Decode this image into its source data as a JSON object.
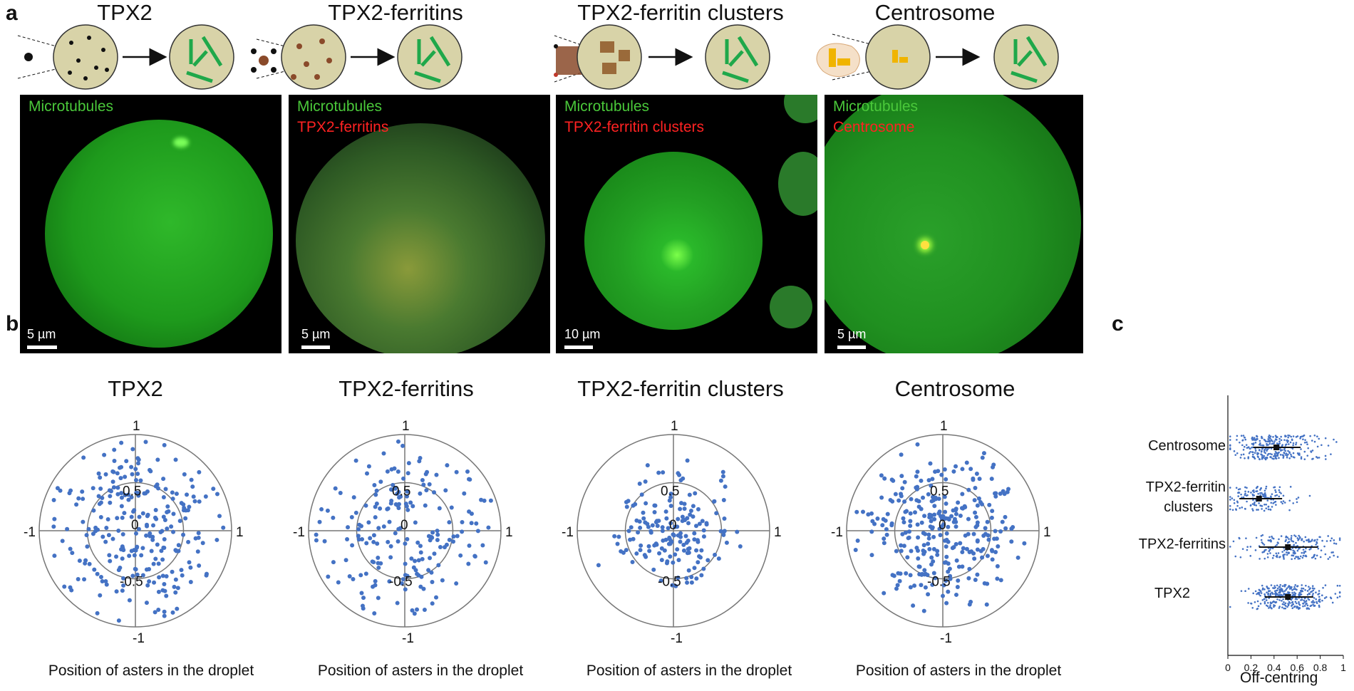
{
  "panel_labels": {
    "a": "a",
    "b": "b",
    "c": "c"
  },
  "panel_a": {
    "columns": [
      {
        "title": "TPX2",
        "label1": "Microtubules",
        "label2": "",
        "scale": "5 µm"
      },
      {
        "title": "TPX2-ferritins",
        "label1": "Microtubules",
        "label2": "TPX2-ferritins",
        "scale": "5 µm"
      },
      {
        "title": "TPX2-ferritin clusters",
        "label1": "Microtubules",
        "label2": "TPX2-ferritin clusters",
        "scale": "10 µm"
      },
      {
        "title": "Centrosome",
        "label1": "Microtubules",
        "label2": "Centrosome",
        "scale": "5 µm"
      }
    ]
  },
  "colors": {
    "droplet": "#d8d3a8",
    "tube": "#1fa84a",
    "dots": "#4472c4",
    "green": "#4ac83a",
    "red": "#ff2222"
  },
  "panel_b": {
    "titles": [
      "TPX2",
      "TPX2-ferritins",
      "TPX2-ferritin clusters",
      "Centrosome"
    ],
    "xlabel": "Position of asters in the droplet",
    "tick_1": "1",
    "tick_m1": "-1",
    "tick_05": "0.5",
    "tick_m05": "-0.5",
    "tick_0": "0"
  },
  "chart_data": {
    "type": "scatter",
    "x_axis_label": "Off-centring",
    "categories": [
      "Centrosome",
      "TPX2-ferritin clusters",
      "TPX2-ferritins",
      "TPX2"
    ],
    "category_line1": [
      "Centrosome",
      "TPX2-ferritin",
      "TPX2-ferritins",
      "TPX2"
    ],
    "category_line2": [
      "",
      "clusters",
      "",
      ""
    ],
    "x_ticks": [
      "0",
      "0.2",
      "0.4",
      "0.6",
      "0.8",
      "1"
    ],
    "xlim": [
      0,
      1
    ],
    "medians": [
      0.42,
      0.27,
      0.52,
      0.52
    ],
    "iqr": [
      [
        0.22,
        0.63
      ],
      [
        0.1,
        0.47
      ],
      [
        0.27,
        0.78
      ],
      [
        0.32,
        0.74
      ]
    ]
  }
}
